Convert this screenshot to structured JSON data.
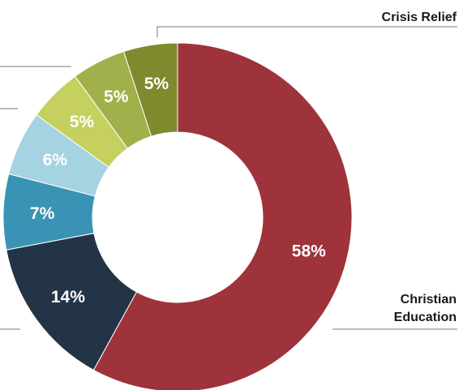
{
  "chart_data": {
    "type": "pie",
    "donut": true,
    "slices": [
      {
        "label": "Christian Education",
        "value": 58,
        "display": "58%",
        "color": "#9e333b"
      },
      {
        "label": "",
        "value": 14,
        "display": "14%",
        "color": "#233446"
      },
      {
        "label": "",
        "value": 7,
        "display": "7%",
        "color": "#3a93b4"
      },
      {
        "label": "",
        "value": 6,
        "display": "6%",
        "color": "#a6d3e1"
      },
      {
        "label": "",
        "value": 5,
        "display": "5%",
        "color": "#c5d05f"
      },
      {
        "label": "",
        "value": 5,
        "display": "5%",
        "color": "#a2b04b"
      },
      {
        "label": "Crisis Relief",
        "value": 5,
        "display": "5%",
        "color": "#7f8a2f"
      }
    ],
    "callouts": {
      "crisis_relief": "Crisis Relief",
      "christian_education_line1": "Christian",
      "christian_education_line2": "Education"
    }
  }
}
